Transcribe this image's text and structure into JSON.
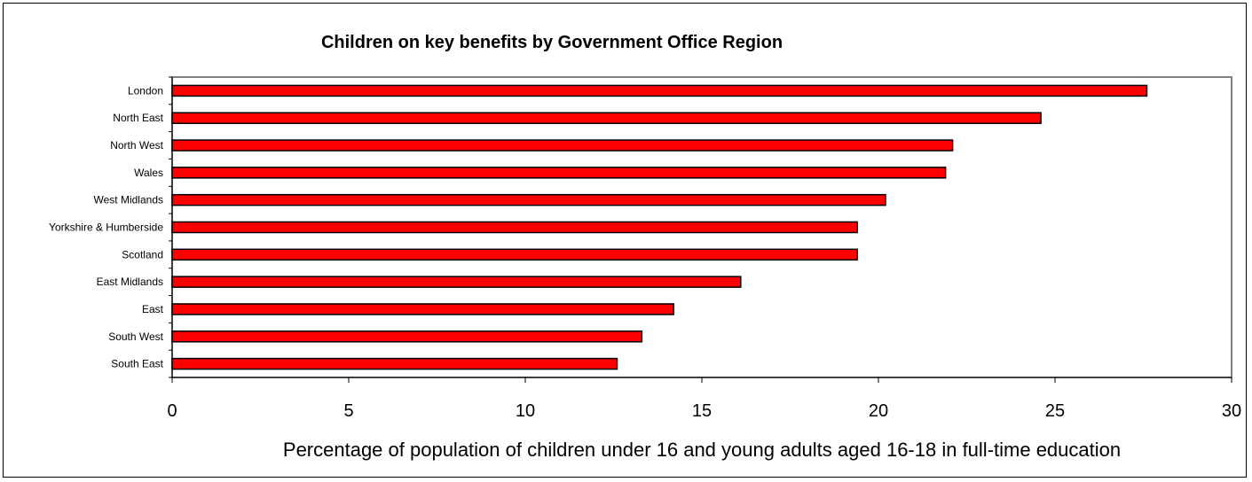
{
  "chart_data": {
    "type": "bar",
    "orientation": "horizontal",
    "title": "Children on key benefits by Government Office Region",
    "xlabel": "Percentage of population of children under 16 and young adults aged 16-18 in full-time education",
    "ylabel": "",
    "categories": [
      "London",
      "North East",
      "North West",
      "Wales",
      "West Midlands",
      "Yorkshire & Humberside",
      "Scotland",
      "East Midlands",
      "East",
      "South West",
      "South East"
    ],
    "values": [
      27.6,
      24.6,
      22.1,
      21.9,
      20.2,
      19.4,
      19.4,
      16.1,
      14.2,
      13.3,
      12.6
    ],
    "xlim": [
      0,
      30
    ],
    "xticks": [
      "0",
      "5",
      "10",
      "15",
      "20",
      "25",
      "30"
    ],
    "bar_color": "#ff0000",
    "bar_edge_color": "#000000",
    "grid": false
  }
}
